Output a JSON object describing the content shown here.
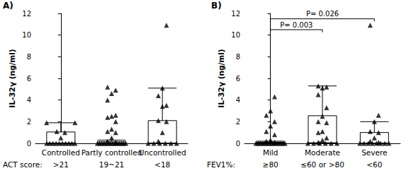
{
  "chart_data": [
    {
      "type": "boxplot",
      "title": "A)",
      "ylabel": "IL-32γ (ng/ml)",
      "categories": [
        "Controlled",
        "Partly controlled",
        "Uncontrolled"
      ],
      "group_label": "ACT score:",
      "group_values": [
        ">21",
        "19~21",
        "<18"
      ],
      "ylim": [
        0,
        12
      ],
      "yticks": [
        0,
        2,
        4,
        6,
        8,
        10,
        12
      ],
      "grid": false,
      "color": "#000000",
      "marker": "triangle",
      "boxes": [
        [
          0,
          0,
          0,
          1.05,
          1.9
        ],
        [
          0,
          0,
          0,
          0.15,
          0.3
        ],
        [
          0,
          0,
          0,
          2.1,
          5.1
        ]
      ],
      "points": [
        [
          0,
          0,
          0,
          0,
          0,
          0,
          0,
          0,
          0,
          0,
          0.5,
          1.0,
          1.1,
          1.9,
          1.9
        ],
        [
          0,
          0,
          0,
          0,
          0,
          0,
          0,
          0,
          0,
          0,
          0,
          0,
          0,
          0,
          0.1,
          0.2,
          0.5,
          1.0,
          1.1,
          1.3,
          2.0,
          2.4,
          2.5,
          2.6,
          4.0,
          4.6,
          4.9,
          5.2
        ],
        [
          0,
          0,
          0,
          0,
          0,
          0,
          0.2,
          1.0,
          2.0,
          2.1,
          3.4,
          3.5,
          4.4,
          5.1,
          10.9
        ]
      ],
      "annotations": []
    },
    {
      "type": "boxplot",
      "title": "B)",
      "ylabel": "IL-32γ (ng/ml)",
      "categories": [
        "Mild",
        "Moderate",
        "Severe"
      ],
      "group_label": "FEV1%:",
      "group_values": [
        "≥80",
        "≤60 or >80",
        "<60"
      ],
      "ylim": [
        0,
        12
      ],
      "yticks": [
        0,
        2,
        4,
        6,
        8,
        10,
        12
      ],
      "grid": false,
      "color": "#000000",
      "marker": "triangle",
      "boxes": [
        [
          0,
          0,
          0,
          0.1,
          0.2
        ],
        [
          0,
          0,
          0.05,
          2.55,
          5.3
        ],
        [
          0,
          0,
          0,
          1.0,
          2.0
        ]
      ],
      "points": [
        [
          0,
          0,
          0,
          0,
          0,
          0,
          0,
          0,
          0,
          0,
          0,
          0,
          0,
          0,
          0.1,
          0.2,
          0.3,
          0.8,
          1.1,
          1.6,
          2.0,
          2.6,
          3.0,
          4.3
        ],
        [
          0,
          0,
          0,
          0,
          0,
          0,
          0.1,
          0.3,
          0.5,
          1.0,
          1.1,
          1.9,
          2.0,
          2.5,
          3.3,
          4.5,
          5.1,
          5.2,
          5.3
        ],
        [
          0,
          0,
          0,
          0,
          0,
          0,
          0,
          0,
          0.1,
          0.2,
          0.5,
          1.0,
          1.1,
          2.0,
          2.6,
          10.9
        ]
      ],
      "annotations": [
        {
          "from": "Mild",
          "to": "Moderate",
          "label": "P= 0.003",
          "y": 10.5
        },
        {
          "from": "Mild",
          "to": "Severe",
          "label": "P= 0.026",
          "y": 11.5
        }
      ]
    }
  ]
}
